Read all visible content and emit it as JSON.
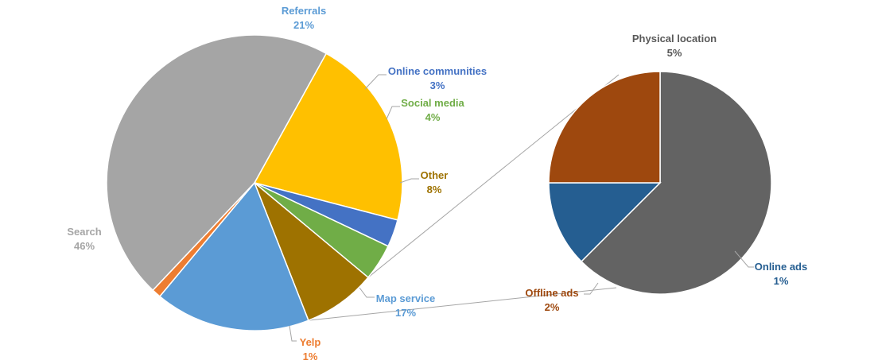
{
  "chart_data": {
    "type": "pie",
    "subtype": "pie-of-pie",
    "main_pie": {
      "slices": [
        {
          "label": "Referrals",
          "value": 21,
          "value_label": "21%",
          "color": "#FFC000"
        },
        {
          "label": "Online communities",
          "value": 3,
          "value_label": "3%",
          "color": "#4472C4"
        },
        {
          "label": "Social media",
          "value": 4,
          "value_label": "4%",
          "color": "#70AD47"
        },
        {
          "label": "Other",
          "value": 8,
          "value_label": "8%",
          "color": "#9E7200"
        },
        {
          "label": "Map service",
          "value": 17,
          "value_label": "17%",
          "color": "#5B9BD5"
        },
        {
          "label": "Yelp",
          "value": 1,
          "value_label": "1%",
          "color": "#ED7D31"
        },
        {
          "label": "Search",
          "value": 46,
          "value_label": "46%",
          "color": "#A5A5A5"
        }
      ]
    },
    "secondary_pie": {
      "parent": "Other",
      "slices": [
        {
          "label": "Physical location",
          "value": 5,
          "value_label": "5%",
          "color": "#636363"
        },
        {
          "label": "Online ads",
          "value": 1,
          "value_label": "1%",
          "color": "#255E91"
        },
        {
          "label": "Offline ads",
          "value": 2,
          "value_label": "2%",
          "color": "#9E480E"
        }
      ]
    },
    "label_colors": {
      "Referrals": "#5B9BD5",
      "Online communities": "#4472C4",
      "Social media": "#70AD47",
      "Other": "#9E7200",
      "Map service": "#5B9BD5",
      "Yelp": "#ED7D31",
      "Search": "#A5A5A5",
      "Physical location": "#595959",
      "Online ads": "#255E91",
      "Offline ads": "#9E480E"
    },
    "legend": "none"
  }
}
